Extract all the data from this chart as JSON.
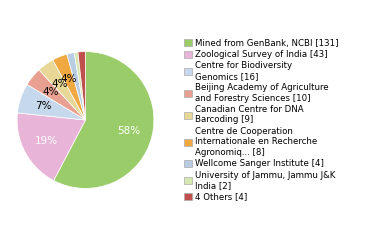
{
  "labels": [
    "Mined from GenBank, NCBI [131]",
    "Zoological Survey of India [43]",
    "Centre for Biodiversity\nGenomics [16]",
    "Beijing Academy of Agriculture\nand Forestry Sciences [10]",
    "Canadian Centre for DNA\nBarcoding [9]",
    "Centre de Cooperation\nInternationale en Recherche\nAgronomiq... [8]",
    "Wellcome Sanger Institute [4]",
    "University of Jammu, Jammu J&K\nIndia [2]",
    "4 Others [4]"
  ],
  "values": [
    131,
    43,
    16,
    10,
    9,
    8,
    4,
    2,
    4
  ],
  "colors": [
    "#9bcc6a",
    "#e8b4d8",
    "#c6d9ec",
    "#e8a090",
    "#e8d898",
    "#f0a840",
    "#b8cce4",
    "#d4e8b0",
    "#c0504d"
  ],
  "startangle": 90,
  "legend_fontsize": 6.2,
  "pct_fontsize": 7.5
}
